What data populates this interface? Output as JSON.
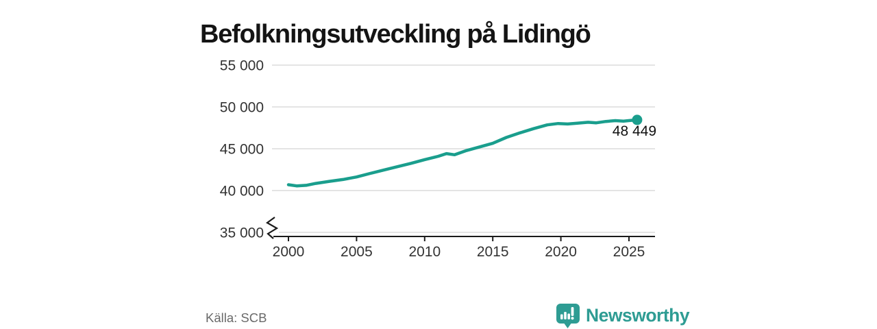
{
  "title": "Befolkningsutveckling på Lidingö",
  "chart_data": {
    "type": "line",
    "title": "Befolkningsutveckling på Lidingö",
    "xlabel": "",
    "ylabel": "",
    "xlim": [
      1999.5,
      2027
    ],
    "ylim": [
      35000,
      55000
    ],
    "axis_break_below": 40000,
    "grid": "horizontal",
    "legend": "none",
    "end_label": "48 449",
    "end_value": 48449,
    "yticks": [
      {
        "value": 35000,
        "label": "35 000"
      },
      {
        "value": 40000,
        "label": "40 000"
      },
      {
        "value": 45000,
        "label": "45 000"
      },
      {
        "value": 50000,
        "label": "50 000"
      },
      {
        "value": 55000,
        "label": "55 000"
      }
    ],
    "xticks": [
      {
        "value": 2000,
        "label": "2000"
      },
      {
        "value": 2005,
        "label": "2005"
      },
      {
        "value": 2010,
        "label": "2010"
      },
      {
        "value": 2015,
        "label": "2015"
      },
      {
        "value": 2020,
        "label": "2020"
      },
      {
        "value": 2025,
        "label": "2025"
      }
    ],
    "series": [
      {
        "points": [
          [
            2000.0,
            40700
          ],
          [
            2000.6,
            40560
          ],
          [
            2001.3,
            40620
          ],
          [
            2002,
            40850
          ],
          [
            2003,
            41100
          ],
          [
            2004,
            41320
          ],
          [
            2005,
            41620
          ],
          [
            2006,
            42050
          ],
          [
            2007,
            42450
          ],
          [
            2008,
            42850
          ],
          [
            2009,
            43250
          ],
          [
            2010,
            43700
          ],
          [
            2011,
            44100
          ],
          [
            2011.6,
            44420
          ],
          [
            2012.2,
            44280
          ],
          [
            2013,
            44750
          ],
          [
            2014,
            45200
          ],
          [
            2015,
            45650
          ],
          [
            2016,
            46350
          ],
          [
            2017,
            46900
          ],
          [
            2018,
            47400
          ],
          [
            2019,
            47850
          ],
          [
            2019.8,
            48020
          ],
          [
            2020.5,
            47960
          ],
          [
            2021.2,
            48060
          ],
          [
            2022,
            48160
          ],
          [
            2022.6,
            48100
          ],
          [
            2023.3,
            48260
          ],
          [
            2024,
            48360
          ],
          [
            2024.6,
            48300
          ],
          [
            2025.1,
            48380
          ],
          [
            2025.6,
            48449
          ]
        ]
      }
    ],
    "line_color": "#1a9e8d",
    "grid_color": "#dcdcdc",
    "axis_color": "#1a1a1a",
    "tick_label_color": "#333333",
    "end_label_color": "#111111"
  },
  "footer": {
    "source": "Källa: SCB",
    "brand": "Newsworthy",
    "brand_color": "#2e9c93"
  }
}
